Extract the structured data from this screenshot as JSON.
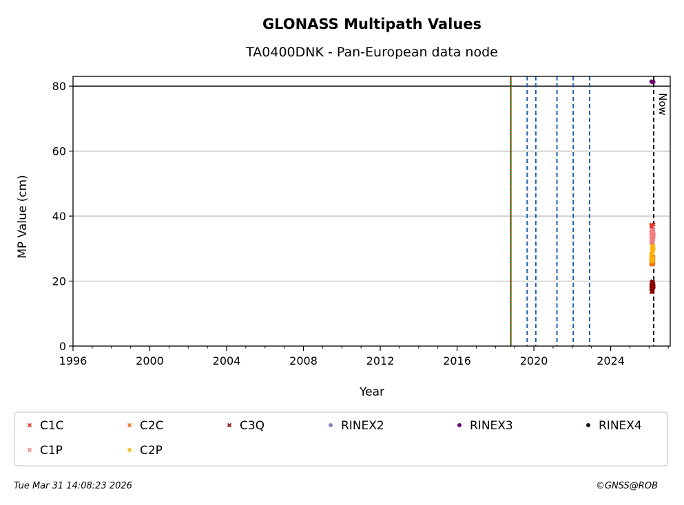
{
  "chart_data": {
    "type": "scatter",
    "title": "GLONASS Multipath Values",
    "subtitle": "TA0400DNK - Pan-European data node",
    "xlabel": "Year",
    "ylabel": "MP Value (cm)",
    "xlim": [
      1996,
      2027.1
    ],
    "ylim": [
      0,
      83
    ],
    "xticks": [
      1996,
      2000,
      2004,
      2008,
      2012,
      2016,
      2020,
      2024
    ],
    "yticks": [
      0,
      20,
      40,
      60,
      80
    ],
    "grid": "horizontal",
    "threshold_line": 80,
    "now_label": "Now",
    "now_year": 2026.24,
    "event_lines": [
      {
        "year": 2018.8,
        "color": "#008000",
        "style": "solid"
      },
      {
        "year": 2018.8,
        "color": "#cc0000",
        "style": "dotted"
      },
      {
        "year": 2019.65,
        "color": "#1f5fb0",
        "style": "dashed"
      },
      {
        "year": 2020.1,
        "color": "#1f5fb0",
        "style": "dashed"
      },
      {
        "year": 2021.2,
        "color": "#1f5fb0",
        "style": "dashed"
      },
      {
        "year": 2022.05,
        "color": "#1f5fb0",
        "style": "dashed"
      },
      {
        "year": 2022.9,
        "color": "#1f5fb0",
        "style": "dashed"
      }
    ],
    "series": [
      {
        "name": "C1C",
        "marker": "x",
        "color": "#e8352a",
        "x_range": [
          2026.1,
          2026.25
        ],
        "y_range": [
          33,
          37.5
        ]
      },
      {
        "name": "C2C",
        "marker": "x",
        "color": "#f07010",
        "x_range": [
          2026.1,
          2026.25
        ],
        "y_range": [
          25,
          27.5
        ]
      },
      {
        "name": "C3Q",
        "marker": "x",
        "color": "#8b0000",
        "x_range": [
          2026.1,
          2026.25
        ],
        "y_range": [
          16.5,
          20
        ]
      },
      {
        "name": "RINEX2",
        "marker": "o",
        "color": "#8c7fc0",
        "x_range": [],
        "y_range": []
      },
      {
        "name": "RINEX3",
        "marker": "o",
        "color": "#6a0070",
        "x_range": [
          2026.1,
          2026.25
        ],
        "y_range": [
          81.2,
          81.6
        ]
      },
      {
        "name": "RINEX4",
        "marker": "o",
        "color": "#1a0020",
        "x_range": [],
        "y_range": []
      },
      {
        "name": "C1P",
        "marker": "x",
        "color": "#f08080",
        "x_range": [
          2026.1,
          2026.25
        ],
        "y_range": [
          31,
          36
        ]
      },
      {
        "name": "C2P",
        "marker": "x",
        "color": "#ffb000",
        "x_range": [
          2026.1,
          2026.25
        ],
        "y_range": [
          26,
          31
        ]
      }
    ],
    "legend_position": "bottom"
  },
  "footer": {
    "timestamp": "Tue Mar 31 14:08:23 2026",
    "copyright": "©GNSS@ROB"
  }
}
